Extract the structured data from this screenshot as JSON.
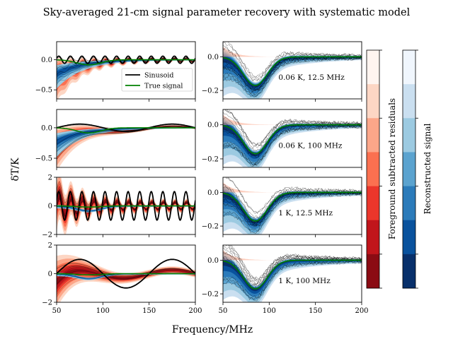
{
  "figure": {
    "title": "Sky-averaged 21-cm signal parameter recovery with systematic model",
    "xlabel": "Frequency/MHz",
    "ylabel": "δT/K",
    "colorbar_residuals_label": "Foreground subtracted residuals",
    "colorbar_signal_label": "Reconstructed signal",
    "colors": {
      "sinusoid": "#000000",
      "true_signal": "#008000",
      "residual_scale": [
        "#fff5f0",
        "#fdd6c4",
        "#fca689",
        "#fb7050",
        "#eb362b",
        "#c1151b",
        "#8b0b13"
      ],
      "signal_scale": [
        "#f0f6fd",
        "#cadff0",
        "#9ccae1",
        "#5ba3cf",
        "#2b7bba",
        "#09529d",
        "#08306b"
      ]
    }
  },
  "chart_data": [
    {
      "type": "line",
      "panel": "left-row-1",
      "xlim": [
        50,
        200
      ],
      "ylim": [
        -0.65,
        0.3
      ],
      "yticks": [
        {
          "v": 0.0,
          "label": "0.0"
        },
        {
          "v": -0.5,
          "label": "−0.5"
        }
      ],
      "xticks": [
        50,
        100,
        150,
        200
      ],
      "show_xtick_labels": false,
      "sinusoid": {
        "amplitude": 0.06,
        "period_mhz": 12.5
      },
      "legend": {
        "position": "lower-right",
        "entries": [
          "Sinusoid",
          "True signal"
        ]
      }
    },
    {
      "type": "line",
      "panel": "left-row-2",
      "xlim": [
        50,
        200
      ],
      "ylim": [
        -0.65,
        0.3
      ],
      "yticks": [
        {
          "v": 0.0,
          "label": "0.0"
        },
        {
          "v": -0.5,
          "label": "−0.5"
        }
      ],
      "xticks": [
        50,
        100,
        150,
        200
      ],
      "show_xtick_labels": false,
      "sinusoid": {
        "amplitude": 0.06,
        "period_mhz": 100
      }
    },
    {
      "type": "line",
      "panel": "left-row-3",
      "xlim": [
        50,
        200
      ],
      "ylim": [
        -2,
        2
      ],
      "yticks": [
        {
          "v": 2,
          "label": "2"
        },
        {
          "v": 0,
          "label": "0"
        },
        {
          "v": -2,
          "label": "−2"
        }
      ],
      "xticks": [
        50,
        100,
        150,
        200
      ],
      "show_xtick_labels": false,
      "sinusoid": {
        "amplitude": 1,
        "period_mhz": 12.5
      }
    },
    {
      "type": "line",
      "panel": "left-row-4",
      "xlim": [
        50,
        200
      ],
      "ylim": [
        -2,
        2
      ],
      "yticks": [
        {
          "v": 2,
          "label": "2"
        },
        {
          "v": 0,
          "label": "0"
        },
        {
          "v": -2,
          "label": "−2"
        }
      ],
      "xticks": [
        50,
        100,
        150,
        200
      ],
      "show_xtick_labels": true,
      "xtick_labels": [
        "50",
        "100",
        "150",
        "200"
      ],
      "sinusoid": {
        "amplitude": 1,
        "period_mhz": 100
      }
    },
    {
      "type": "line",
      "panel": "right-row-1",
      "xlim": [
        50,
        200
      ],
      "ylim": [
        -0.25,
        0.09
      ],
      "yticks": [
        {
          "v": 0.0,
          "label": "0.0"
        },
        {
          "v": -0.2,
          "label": "−0.2"
        }
      ],
      "xticks": [
        50,
        100,
        150,
        200
      ],
      "show_xtick_labels": false,
      "annotation": "0.06 K, 12.5 MHz"
    },
    {
      "type": "line",
      "panel": "right-row-2",
      "xlim": [
        50,
        200
      ],
      "ylim": [
        -0.25,
        0.09
      ],
      "yticks": [
        {
          "v": 0.0,
          "label": "0.0"
        },
        {
          "v": -0.2,
          "label": "−0.2"
        }
      ],
      "xticks": [
        50,
        100,
        150,
        200
      ],
      "show_xtick_labels": false,
      "annotation": "0.06 K, 100 MHz"
    },
    {
      "type": "line",
      "panel": "right-row-3",
      "xlim": [
        50,
        200
      ],
      "ylim": [
        -0.25,
        0.09
      ],
      "yticks": [
        {
          "v": 0.0,
          "label": "0.0"
        },
        {
          "v": -0.2,
          "label": "−0.2"
        }
      ],
      "xticks": [
        50,
        100,
        150,
        200
      ],
      "show_xtick_labels": false,
      "annotation": "1 K, 12.5 MHz"
    },
    {
      "type": "line",
      "panel": "right-row-4",
      "xlim": [
        50,
        200
      ],
      "ylim": [
        -0.25,
        0.09
      ],
      "yticks": [
        {
          "v": 0.0,
          "label": "0.0"
        },
        {
          "v": -0.2,
          "label": "−0.2"
        }
      ],
      "xticks": [
        50,
        100,
        150,
        200
      ],
      "show_xtick_labels": true,
      "xtick_labels": [
        "50",
        "100",
        "150",
        "200"
      ],
      "annotation": "1 K, 100 MHz"
    }
  ],
  "true_signal": {
    "amplitude_k": -0.17,
    "center_mhz": 85,
    "width_mhz": 13
  }
}
